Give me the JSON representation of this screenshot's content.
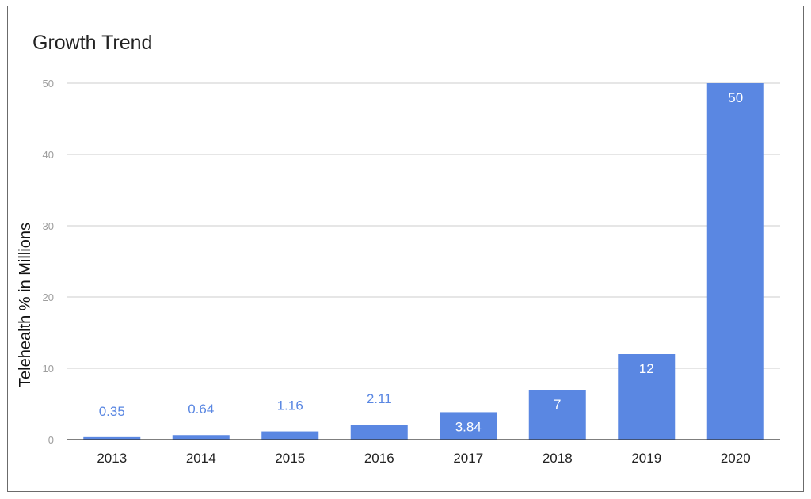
{
  "chart_data": {
    "type": "bar",
    "title": "Growth Trend",
    "xlabel": "",
    "ylabel": "Telehealth % in Millions",
    "categories": [
      "2013",
      "2014",
      "2015",
      "2016",
      "2017",
      "2018",
      "2019",
      "2020"
    ],
    "values": [
      0.35,
      0.64,
      1.16,
      2.11,
      3.84,
      7,
      12,
      50
    ],
    "data_labels": [
      "0.35",
      "0.64",
      "1.16",
      "2.11",
      "3.84",
      "7",
      "12",
      "50"
    ],
    "ylim": [
      0,
      50
    ],
    "yticks": [
      0,
      10,
      20,
      30,
      40,
      50
    ],
    "grid": true,
    "legend": "none",
    "colors": {
      "bar": "#5a87e2",
      "label_outside": "#5a87e2",
      "label_inside": "#ffffff",
      "grid": "#cccccc",
      "axis": "#333333"
    }
  }
}
